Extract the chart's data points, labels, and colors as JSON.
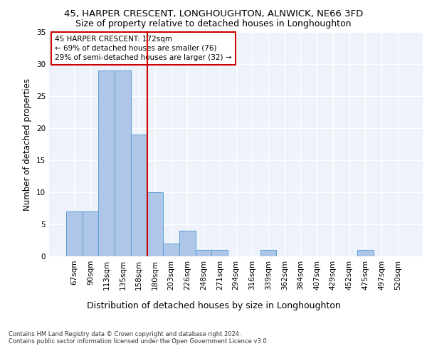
{
  "title1": "45, HARPER CRESCENT, LONGHOUGHTON, ALNWICK, NE66 3FD",
  "title2": "Size of property relative to detached houses in Longhoughton",
  "xlabel": "Distribution of detached houses by size in Longhoughton",
  "ylabel": "Number of detached properties",
  "footnote": "Contains HM Land Registry data © Crown copyright and database right 2024.\nContains public sector information licensed under the Open Government Licence v3.0.",
  "bar_labels": [
    "67sqm",
    "90sqm",
    "113sqm",
    "135sqm",
    "158sqm",
    "180sqm",
    "203sqm",
    "226sqm",
    "248sqm",
    "271sqm",
    "294sqm",
    "316sqm",
    "339sqm",
    "362sqm",
    "384sqm",
    "407sqm",
    "429sqm",
    "452sqm",
    "475sqm",
    "497sqm",
    "520sqm"
  ],
  "bar_values": [
    7,
    7,
    29,
    29,
    19,
    10,
    2,
    4,
    1,
    1,
    0,
    0,
    1,
    0,
    0,
    0,
    0,
    0,
    1,
    0,
    0
  ],
  "bar_color": "#aec6e8",
  "bar_edge_color": "#5a9fd4",
  "vline_x": 4.5,
  "vline_color": "#cc0000",
  "annotation_text": "45 HARPER CRESCENT: 172sqm\n← 69% of detached houses are smaller (76)\n29% of semi-detached houses are larger (32) →",
  "ylim": [
    0,
    35
  ],
  "yticks": [
    0,
    5,
    10,
    15,
    20,
    25,
    30,
    35
  ],
  "bg_color": "#eef2fa",
  "grid_color": "#ffffff",
  "title1_fontsize": 9.5,
  "title2_fontsize": 9,
  "xlabel_fontsize": 9,
  "ylabel_fontsize": 8.5,
  "annotation_fontsize": 7.5,
  "tick_fontsize": 7.5,
  "footnote_fontsize": 6
}
